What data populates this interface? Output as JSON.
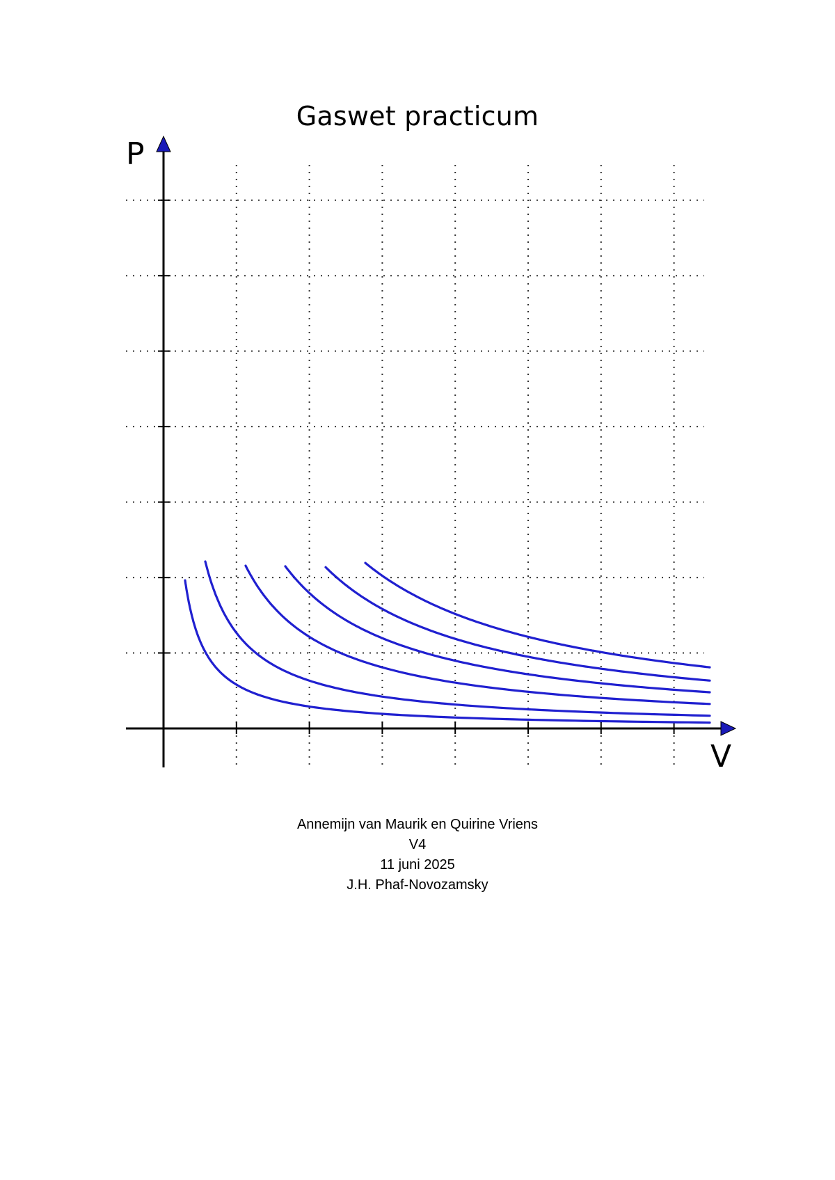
{
  "document": {
    "title": "Gaswet practicum",
    "authors": "Annemijn van Maurik en Quirine Vriens",
    "class": "V4",
    "date": "11 juni 2025",
    "teacher": "J.H. Phaf-Novozamsky"
  },
  "diagram": {
    "y_axis_label": "P",
    "x_axis_label": "V",
    "curve_color": "#2020d0",
    "axis_color": "#000000",
    "arrow_color": "#1a1ab8",
    "grid": "dotted",
    "curve_count": 6,
    "vertical_grid_lines": 7,
    "horizontal_grid_lines": 7
  }
}
